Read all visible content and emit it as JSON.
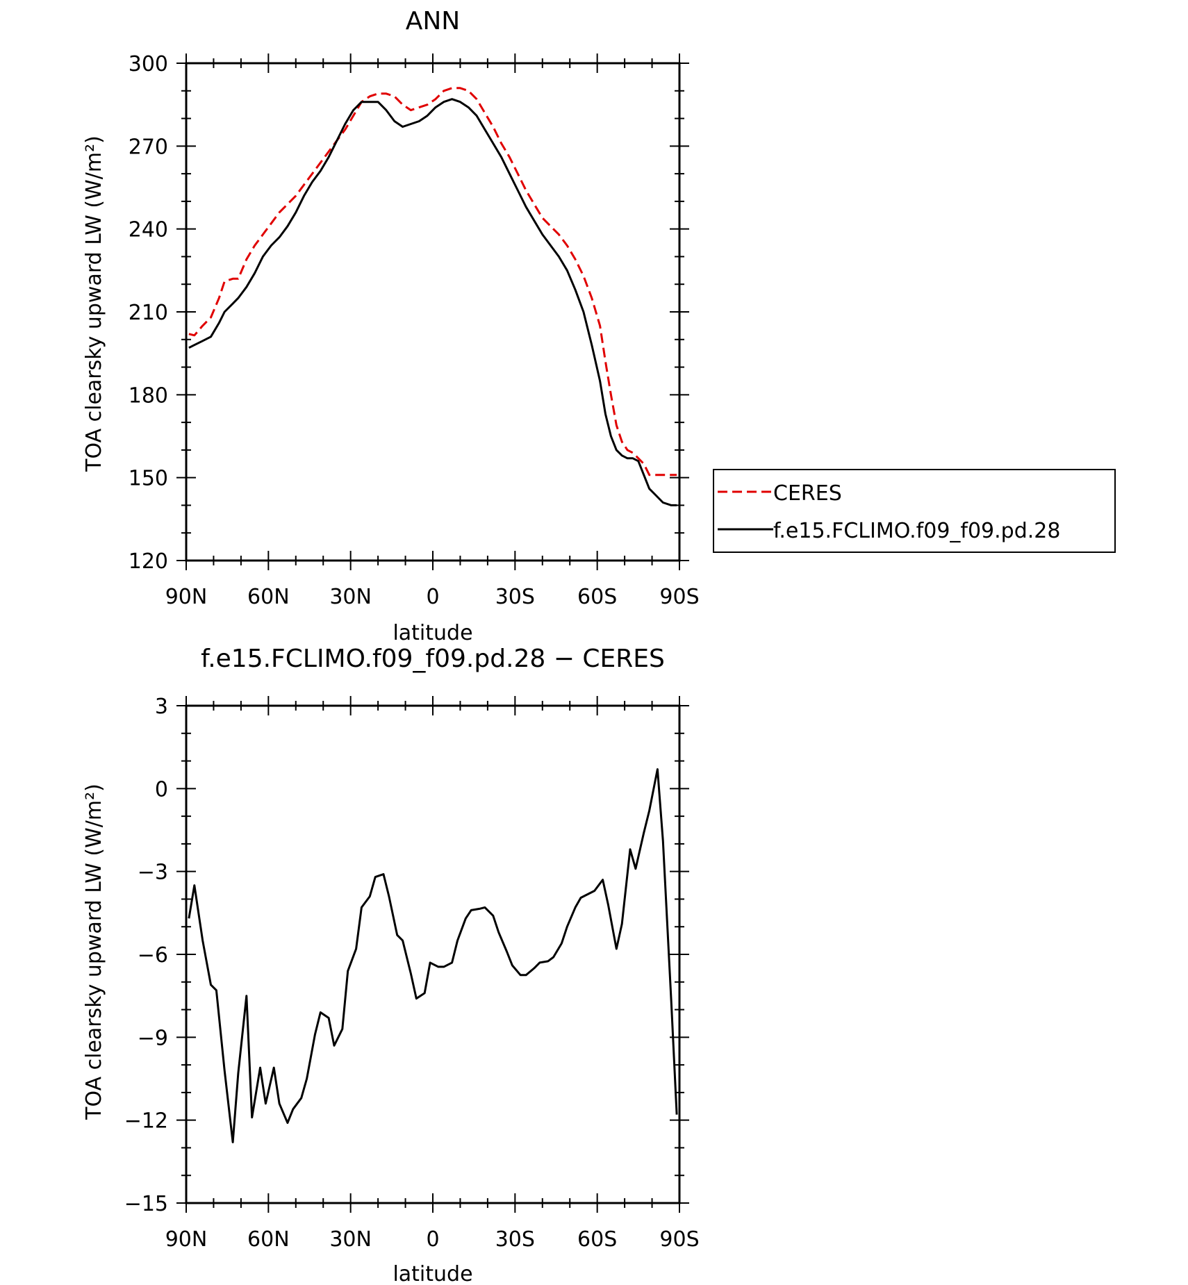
{
  "chart_data": [
    {
      "type": "line",
      "title": "ANN",
      "xlabel": "latitude",
      "ylabel": "TOA clearsky upward LW (W/m²)",
      "xlim": [
        90,
        -90
      ],
      "ylim": [
        120,
        300
      ],
      "x_tick_values": [
        90,
        60,
        30,
        0,
        -30,
        -60,
        -90
      ],
      "x_tick_labels": [
        "90N",
        "60N",
        "30N",
        "0",
        "30S",
        "60S",
        "90S"
      ],
      "y_ticks": [
        120,
        150,
        180,
        210,
        240,
        270,
        300
      ],
      "grid": false,
      "legend_position": "right",
      "series": [
        {
          "name": "CERES",
          "color": "#e00000",
          "style": "dashed",
          "x": [
            89,
            87,
            84,
            81,
            78,
            76,
            73,
            71,
            68,
            65,
            62,
            59,
            56,
            53,
            50,
            47,
            44,
            41,
            38,
            35,
            32,
            29,
            26,
            23,
            20,
            17,
            14,
            11,
            8,
            5,
            2,
            -1,
            -4,
            -7,
            -10,
            -13,
            -16,
            -19,
            -22,
            -25,
            -28,
            -31,
            -34,
            -37,
            -40,
            -43,
            -46,
            -49,
            -52,
            -55,
            -58,
            -61,
            -63,
            -65,
            -67,
            -69,
            -71,
            -73,
            -75,
            -77,
            -79,
            -81,
            -84,
            -87,
            -89
          ],
          "values": [
            202,
            201.5,
            205,
            208,
            215,
            221,
            222,
            222,
            229,
            234,
            238,
            242,
            246,
            249,
            252,
            256,
            260,
            264,
            268,
            272,
            276,
            281,
            286,
            288,
            289,
            289,
            288,
            285,
            283,
            284,
            285,
            287,
            290,
            291,
            291,
            290,
            287,
            282,
            277,
            271,
            266,
            260,
            254,
            249,
            244,
            241,
            238,
            234,
            229,
            223,
            215,
            205,
            192,
            180,
            169,
            163,
            160,
            159,
            157,
            155,
            151,
            151,
            151,
            151,
            151
          ]
        },
        {
          "name": "f.e15.FCLIMO.f09_f09.pd.28",
          "color": "#000000",
          "style": "solid",
          "x": [
            89,
            87,
            84,
            81,
            78,
            76,
            73,
            71,
            68,
            65,
            62,
            59,
            56,
            53,
            50,
            47,
            44,
            41,
            38,
            35,
            32,
            29,
            26,
            23,
            20,
            17,
            14,
            11,
            8,
            5,
            2,
            -1,
            -4,
            -7,
            -10,
            -13,
            -16,
            -19,
            -22,
            -25,
            -28,
            -31,
            -34,
            -37,
            -40,
            -43,
            -46,
            -49,
            -52,
            -55,
            -58,
            -61,
            -63,
            -65,
            -67,
            -69,
            -71,
            -73,
            -75,
            -77,
            -79,
            -81,
            -84,
            -87,
            -89
          ],
          "values": [
            197,
            198,
            199.5,
            201,
            206,
            210,
            213,
            215,
            219,
            224,
            230,
            234,
            237,
            241,
            246,
            252,
            257,
            261,
            266,
            272,
            278,
            283,
            286,
            286,
            286,
            283,
            279,
            277,
            278,
            279,
            281,
            284,
            286,
            287,
            286,
            284,
            281,
            276,
            271,
            266,
            260,
            254,
            248,
            243,
            238,
            234,
            230,
            225,
            218,
            210,
            198,
            185,
            173,
            165,
            160,
            158,
            157,
            157,
            156,
            151,
            146,
            144,
            141,
            140,
            140
          ]
        }
      ]
    },
    {
      "type": "line",
      "title": "f.e15.FCLIMO.f09_f09.pd.28 − CERES",
      "xlabel": "latitude",
      "ylabel": "TOA clearsky upward LW (W/m²)",
      "xlim": [
        90,
        -90
      ],
      "ylim": [
        -15,
        3
      ],
      "x_tick_values": [
        90,
        60,
        30,
        0,
        -30,
        -60,
        -90
      ],
      "x_tick_labels": [
        "90N",
        "60N",
        "30N",
        "0",
        "30S",
        "60S",
        "90S"
      ],
      "y_ticks": [
        -15,
        -12,
        -9,
        -6,
        -3,
        0,
        3
      ],
      "grid": false,
      "series": [
        {
          "color": "#000000",
          "style": "solid",
          "x": [
            89,
            87,
            84,
            81,
            79,
            76,
            73,
            71,
            68,
            66,
            63,
            61,
            58,
            56,
            53,
            51,
            48,
            46,
            43,
            41,
            38,
            36,
            33,
            31,
            28,
            26,
            23,
            21,
            18,
            16,
            13,
            11,
            8,
            6,
            3,
            1,
            -2,
            -4,
            -7,
            -9,
            -12,
            -14,
            -17,
            -19,
            -22,
            -24,
            -27,
            -29,
            -32,
            -34,
            -37,
            -39,
            -42,
            -44,
            -47,
            -49,
            -52,
            -54,
            -57,
            -59,
            -62,
            -64,
            -67,
            -69,
            -72,
            -74,
            -77,
            -79,
            -82,
            -84,
            -87,
            -89
          ],
          "values": [
            -4.7,
            -3.5,
            -5.5,
            -7.1,
            -7.3,
            -10.2,
            -12.8,
            -10.3,
            -7.5,
            -11.9,
            -10.1,
            -11.4,
            -10.1,
            -11.4,
            -12.1,
            -11.6,
            -11.2,
            -10.5,
            -8.9,
            -8.1,
            -8.3,
            -9.3,
            -8.7,
            -6.6,
            -5.8,
            -4.3,
            -3.9,
            -3.2,
            -3.1,
            -3.9,
            -5.3,
            -5.5,
            -6.7,
            -7.6,
            -7.4,
            -6.3,
            -6.45,
            -6.45,
            -6.3,
            -5.5,
            -4.7,
            -4.4,
            -4.35,
            -4.3,
            -4.6,
            -5.2,
            -5.9,
            -6.4,
            -6.75,
            -6.75,
            -6.5,
            -6.3,
            -6.25,
            -6.1,
            -5.6,
            -5.0,
            -4.3,
            -3.95,
            -3.8,
            -3.7,
            -3.3,
            -4.2,
            -5.8,
            -4.9,
            -2.2,
            -2.9,
            -1.6,
            -0.8,
            0.7,
            -1.9,
            -7.7,
            -11.8
          ]
        }
      ]
    }
  ]
}
